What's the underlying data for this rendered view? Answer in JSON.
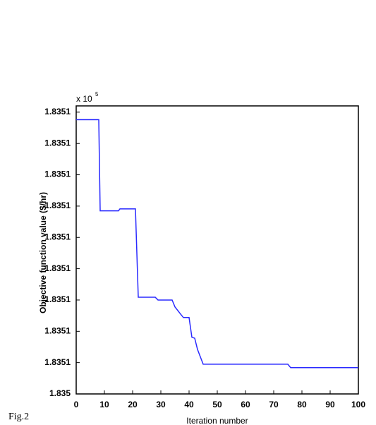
{
  "chart_data": {
    "type": "line",
    "caption": "Fig.2",
    "xlabel": "Iteration number",
    "ylabel": "Objective function value ($/hr)",
    "offset_text": "x 10",
    "offset_exponent": "5",
    "x": [
      0,
      8,
      8.5,
      15,
      15.5,
      21,
      22,
      28,
      29,
      34,
      35,
      37,
      38,
      40,
      41,
      42,
      43,
      45,
      75,
      76,
      100
    ],
    "series": [
      {
        "color": "#2a2aff",
        "values": [
          1.8351276,
          1.8351276,
          1.8350985,
          1.8350985,
          1.8350991,
          1.8350991,
          1.8350709,
          1.8350709,
          1.83507,
          1.83507,
          1.8350678,
          1.8350655,
          1.8350644,
          1.8350644,
          1.8350581,
          1.8350578,
          1.8350542,
          1.8350495,
          1.8350495,
          1.8350484,
          1.8350484
        ]
      }
    ],
    "xlim": [
      0,
      100
    ],
    "xticks": [
      0,
      10,
      20,
      30,
      40,
      50,
      60,
      70,
      80,
      90,
      100
    ],
    "ylim": [
      1.83504,
      1.835132
    ],
    "yticks": [
      {
        "value": 1.83504,
        "label": "1.835"
      },
      {
        "value": 1.83505,
        "label": "1.8351"
      },
      {
        "value": 1.83506,
        "label": "1.8351"
      },
      {
        "value": 1.83507,
        "label": "1.8351"
      },
      {
        "value": 1.83508,
        "label": "1.8351"
      },
      {
        "value": 1.83509,
        "label": "1.8351"
      },
      {
        "value": 1.8351,
        "label": "1.8351"
      },
      {
        "value": 1.83511,
        "label": "1.8351"
      },
      {
        "value": 1.83512,
        "label": "1.8351"
      },
      {
        "value": 1.83513,
        "label": "1.8351"
      }
    ],
    "grid": false
  }
}
